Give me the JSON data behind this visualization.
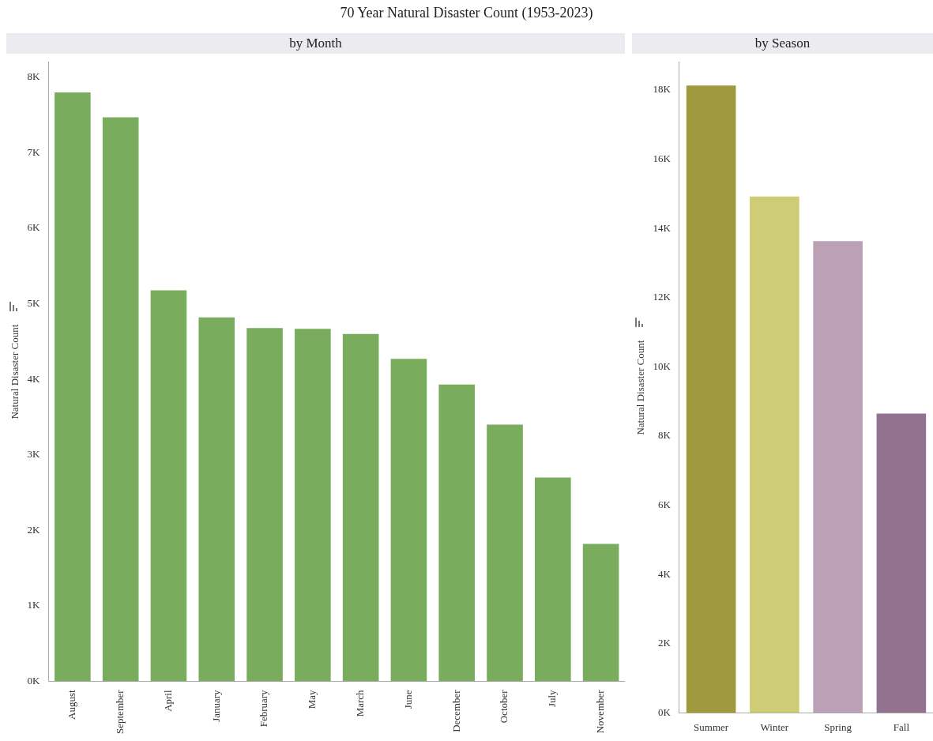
{
  "chart_data": [
    {
      "type": "bar",
      "title": "70 Year Natural Disaster Count (1953-2023)",
      "subtitle": "by Month",
      "ylabel": "Natural Disaster Count",
      "categories": [
        "August",
        "September",
        "April",
        "January",
        "February",
        "May",
        "March",
        "June",
        "December",
        "October",
        "July",
        "November"
      ],
      "values": [
        7800,
        7470,
        5180,
        4820,
        4680,
        4670,
        4600,
        4270,
        3930,
        3400,
        2700,
        1820
      ],
      "color": "#79ac5c",
      "ylim": [
        0,
        8200
      ],
      "yticks": [
        {
          "value": 0,
          "label": "0K"
        },
        {
          "value": 1000,
          "label": "1K"
        },
        {
          "value": 2000,
          "label": "2K"
        },
        {
          "value": 3000,
          "label": "3K"
        },
        {
          "value": 4000,
          "label": "4K"
        },
        {
          "value": 5000,
          "label": "5K"
        },
        {
          "value": 6000,
          "label": "6K"
        },
        {
          "value": 7000,
          "label": "7K"
        },
        {
          "value": 8000,
          "label": "8K"
        }
      ]
    },
    {
      "type": "bar",
      "subtitle": "by Season",
      "ylabel": "Natural Disaster Count",
      "categories": [
        "Summer",
        "Winter",
        "Spring",
        "Fall"
      ],
      "values": [
        18130,
        14920,
        13630,
        8650
      ],
      "colors": [
        "#9e9a3d",
        "#cfcc77",
        "#bba0b6",
        "#93728f"
      ],
      "ylim": [
        0,
        18800
      ],
      "yticks": [
        {
          "value": 0,
          "label": "0K"
        },
        {
          "value": 2000,
          "label": "2K"
        },
        {
          "value": 4000,
          "label": "4K"
        },
        {
          "value": 6000,
          "label": "6K"
        },
        {
          "value": 8000,
          "label": "8K"
        },
        {
          "value": 10000,
          "label": "10K"
        },
        {
          "value": 12000,
          "label": "12K"
        },
        {
          "value": 14000,
          "label": "14K"
        },
        {
          "value": 16000,
          "label": "16K"
        },
        {
          "value": 18000,
          "label": "18K"
        }
      ]
    }
  ]
}
